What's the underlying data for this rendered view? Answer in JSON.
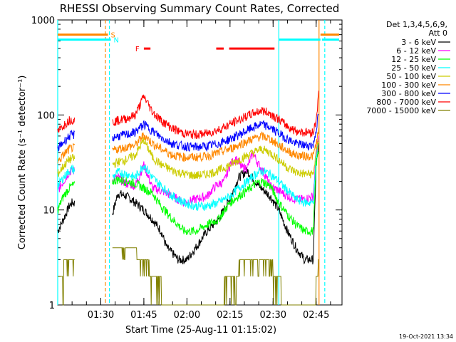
{
  "chart_data": {
    "type": "line",
    "title": "RHESSI Observing Summary Count Rates, Corrected",
    "ylabel": "Corrected Count Rate (s⁻¹ detector⁻¹)",
    "xlabel": "Start Time (25-Aug-11 01:15:02)",
    "y_scale": "log",
    "ylim": [
      1,
      1000
    ],
    "xlim_minutes": [
      0,
      99
    ],
    "y_ticks": [
      {
        "v": 1,
        "label": "1"
      },
      {
        "v": 10,
        "label": "10"
      },
      {
        "v": 100,
        "label": "100"
      },
      {
        "v": 1000,
        "label": "1000"
      }
    ],
    "x_ticks": [
      {
        "t": 15,
        "label": "01:30"
      },
      {
        "t": 30,
        "label": "01:45"
      },
      {
        "t": 45,
        "label": "02:00"
      },
      {
        "t": 60,
        "label": "02:15"
      },
      {
        "t": 75,
        "label": "02:30"
      },
      {
        "t": 90,
        "label": "02:45"
      }
    ],
    "gaps_minutes": [
      [
        6,
        19
      ],
      [
        91,
        99
      ]
    ],
    "legend": {
      "header_lines": [
        "Det 1,3,4,5,6,9,",
        "Att 0"
      ],
      "placement": "right"
    },
    "series": [
      {
        "name": "3 - 6 keV",
        "color": "#000000",
        "points": [
          [
            0,
            6
          ],
          [
            2,
            8
          ],
          [
            4,
            11
          ],
          [
            5,
            12
          ],
          [
            19,
            9
          ],
          [
            21,
            15
          ],
          [
            24,
            14
          ],
          [
            27,
            12
          ],
          [
            30,
            10
          ],
          [
            33,
            8
          ],
          [
            36,
            6
          ],
          [
            38,
            4
          ],
          [
            40,
            3.5
          ],
          [
            42,
            3
          ],
          [
            45,
            3
          ],
          [
            48,
            4
          ],
          [
            52,
            6
          ],
          [
            56,
            8
          ],
          [
            60,
            13
          ],
          [
            63,
            22
          ],
          [
            66,
            26
          ],
          [
            70,
            18
          ],
          [
            74,
            14
          ],
          [
            77,
            10
          ],
          [
            80,
            6
          ],
          [
            83,
            4
          ],
          [
            86,
            3
          ],
          [
            89,
            3
          ],
          [
            90,
            30
          ],
          [
            91,
            50
          ]
        ]
      },
      {
        "name": "6 - 12 keV",
        "color": "#ff00ff",
        "points": [
          [
            0,
            16
          ],
          [
            2,
            20
          ],
          [
            4,
            25
          ],
          [
            5,
            26
          ],
          [
            19,
            21
          ],
          [
            21,
            22
          ],
          [
            24,
            19
          ],
          [
            27,
            18
          ],
          [
            30,
            30
          ],
          [
            33,
            17
          ],
          [
            36,
            16
          ],
          [
            40,
            14
          ],
          [
            44,
            12
          ],
          [
            48,
            13
          ],
          [
            52,
            14
          ],
          [
            55,
            18
          ],
          [
            58,
            20
          ],
          [
            60,
            30
          ],
          [
            62,
            35
          ],
          [
            64,
            28
          ],
          [
            66,
            28
          ],
          [
            68,
            40
          ],
          [
            70,
            30
          ],
          [
            72,
            24
          ],
          [
            74,
            18
          ],
          [
            77,
            16
          ],
          [
            80,
            14
          ],
          [
            83,
            13
          ],
          [
            86,
            13
          ],
          [
            89,
            14
          ],
          [
            90,
            40
          ],
          [
            91,
            60
          ]
        ]
      },
      {
        "name": "12 - 25 keV",
        "color": "#00ff00",
        "points": [
          [
            0,
            10
          ],
          [
            2,
            14
          ],
          [
            4,
            17
          ],
          [
            5,
            18
          ],
          [
            19,
            20
          ],
          [
            21,
            21
          ],
          [
            24,
            20
          ],
          [
            27,
            19
          ],
          [
            30,
            17
          ],
          [
            33,
            15
          ],
          [
            36,
            11
          ],
          [
            40,
            8
          ],
          [
            44,
            6
          ],
          [
            48,
            6
          ],
          [
            52,
            7
          ],
          [
            56,
            8
          ],
          [
            60,
            12
          ],
          [
            63,
            14
          ],
          [
            66,
            16
          ],
          [
            69,
            19
          ],
          [
            71,
            20
          ],
          [
            74,
            18
          ],
          [
            77,
            12
          ],
          [
            80,
            9
          ],
          [
            83,
            7
          ],
          [
            86,
            6
          ],
          [
            89,
            6
          ],
          [
            90,
            30
          ],
          [
            91,
            45
          ]
        ]
      },
      {
        "name": "25 - 50 keV",
        "color": "#00ffff",
        "points": [
          [
            0,
            18
          ],
          [
            2,
            22
          ],
          [
            4,
            26
          ],
          [
            5,
            27
          ],
          [
            19,
            22
          ],
          [
            21,
            25
          ],
          [
            24,
            24
          ],
          [
            27,
            22
          ],
          [
            30,
            30
          ],
          [
            33,
            22
          ],
          [
            36,
            18
          ],
          [
            40,
            14
          ],
          [
            44,
            12
          ],
          [
            48,
            11
          ],
          [
            52,
            11
          ],
          [
            56,
            12
          ],
          [
            60,
            14
          ],
          [
            63,
            17
          ],
          [
            66,
            20
          ],
          [
            69,
            24
          ],
          [
            71,
            26
          ],
          [
            74,
            24
          ],
          [
            77,
            20
          ],
          [
            80,
            16
          ],
          [
            83,
            13
          ],
          [
            86,
            12
          ],
          [
            89,
            12
          ],
          [
            90,
            35
          ],
          [
            91,
            55
          ]
        ]
      },
      {
        "name": "50 - 100 keV",
        "color": "#cccc00",
        "points": [
          [
            0,
            24
          ],
          [
            2,
            29
          ],
          [
            4,
            34
          ],
          [
            5,
            35
          ],
          [
            19,
            30
          ],
          [
            21,
            32
          ],
          [
            24,
            34
          ],
          [
            27,
            38
          ],
          [
            30,
            55
          ],
          [
            33,
            36
          ],
          [
            36,
            30
          ],
          [
            40,
            26
          ],
          [
            44,
            24
          ],
          [
            48,
            23
          ],
          [
            52,
            24
          ],
          [
            56,
            26
          ],
          [
            60,
            30
          ],
          [
            64,
            35
          ],
          [
            68,
            40
          ],
          [
            71,
            44
          ],
          [
            74,
            40
          ],
          [
            77,
            34
          ],
          [
            80,
            28
          ],
          [
            83,
            25
          ],
          [
            86,
            24
          ],
          [
            89,
            24
          ],
          [
            90,
            40
          ],
          [
            91,
            60
          ]
        ]
      },
      {
        "name": "100 - 300 keV",
        "color": "#ff8800",
        "points": [
          [
            0,
            32
          ],
          [
            2,
            38
          ],
          [
            4,
            44
          ],
          [
            5,
            45
          ],
          [
            19,
            42
          ],
          [
            21,
            44
          ],
          [
            24,
            46
          ],
          [
            27,
            48
          ],
          [
            30,
            62
          ],
          [
            33,
            50
          ],
          [
            36,
            44
          ],
          [
            40,
            38
          ],
          [
            44,
            36
          ],
          [
            48,
            36
          ],
          [
            52,
            37
          ],
          [
            56,
            40
          ],
          [
            60,
            44
          ],
          [
            64,
            50
          ],
          [
            68,
            56
          ],
          [
            71,
            60
          ],
          [
            74,
            56
          ],
          [
            77,
            48
          ],
          [
            80,
            42
          ],
          [
            83,
            38
          ],
          [
            86,
            37
          ],
          [
            89,
            37
          ],
          [
            90,
            50
          ],
          [
            91,
            70
          ]
        ]
      },
      {
        "name": "300 - 800 keV",
        "color": "#0000ff",
        "points": [
          [
            0,
            44
          ],
          [
            2,
            52
          ],
          [
            4,
            60
          ],
          [
            5,
            62
          ],
          [
            19,
            58
          ],
          [
            21,
            60
          ],
          [
            24,
            62
          ],
          [
            27,
            66
          ],
          [
            30,
            80
          ],
          [
            33,
            68
          ],
          [
            36,
            58
          ],
          [
            40,
            50
          ],
          [
            44,
            47
          ],
          [
            48,
            46
          ],
          [
            52,
            47
          ],
          [
            56,
            50
          ],
          [
            60,
            56
          ],
          [
            64,
            64
          ],
          [
            68,
            74
          ],
          [
            71,
            80
          ],
          [
            74,
            74
          ],
          [
            77,
            64
          ],
          [
            80,
            56
          ],
          [
            83,
            50
          ],
          [
            86,
            48
          ],
          [
            89,
            48
          ],
          [
            90,
            70
          ],
          [
            91,
            110
          ]
        ]
      },
      {
        "name": "800 - 7000 keV",
        "color": "#ff0000",
        "points": [
          [
            0,
            66
          ],
          [
            2,
            78
          ],
          [
            4,
            88
          ],
          [
            5,
            90
          ],
          [
            19,
            84
          ],
          [
            21,
            88
          ],
          [
            24,
            92
          ],
          [
            27,
            100
          ],
          [
            30,
            158
          ],
          [
            33,
            108
          ],
          [
            36,
            88
          ],
          [
            40,
            72
          ],
          [
            44,
            64
          ],
          [
            48,
            62
          ],
          [
            52,
            64
          ],
          [
            56,
            70
          ],
          [
            60,
            80
          ],
          [
            64,
            92
          ],
          [
            68,
            104
          ],
          [
            71,
            112
          ],
          [
            74,
            104
          ],
          [
            77,
            90
          ],
          [
            80,
            76
          ],
          [
            83,
            68
          ],
          [
            86,
            66
          ],
          [
            89,
            66
          ],
          [
            90,
            90
          ],
          [
            91,
            180
          ]
        ]
      },
      {
        "name": "7000 - 15000 keV",
        "color": "#808000",
        "points": [
          [
            0,
            1.5
          ],
          [
            2,
            2.5
          ],
          [
            4,
            3
          ],
          [
            5,
            3
          ],
          [
            19,
            4
          ],
          [
            21,
            4
          ],
          [
            24,
            4
          ],
          [
            27,
            4
          ],
          [
            28,
            3
          ],
          [
            31,
            3
          ],
          [
            33,
            2
          ],
          [
            35,
            2
          ],
          [
            36,
            1.5
          ],
          [
            40,
            1
          ],
          [
            56,
            1
          ],
          [
            58,
            1.5
          ],
          [
            60,
            2
          ],
          [
            62,
            2
          ],
          [
            64,
            3
          ],
          [
            66,
            3
          ],
          [
            70,
            3
          ],
          [
            74,
            3
          ],
          [
            76,
            2
          ],
          [
            78,
            1.5
          ],
          [
            80,
            1
          ],
          [
            88,
            1
          ],
          [
            90,
            1.5
          ],
          [
            91,
            3
          ]
        ]
      }
    ],
    "attenuator_bars": [
      {
        "label": "S",
        "color": "#ff8800",
        "y": 700,
        "segments": [
          [
            0,
            17.5
          ],
          [
            91.5,
            98
          ]
        ]
      },
      {
        "label": "N",
        "color": "#00ffff",
        "y": 620,
        "segments": [
          [
            0,
            18.5
          ],
          [
            77,
            91.5
          ],
          [
            92,
            98
          ]
        ]
      },
      {
        "label": "F",
        "color": "#ff0000",
        "y": 500,
        "segments": [
          [
            30,
            32.3
          ],
          [
            55.2,
            57.8
          ],
          [
            59.7,
            75.5
          ]
        ]
      }
    ],
    "vertical_lines": [
      {
        "t": 0,
        "color": "#00ffff",
        "dash": false
      },
      {
        "t": 16.6,
        "color": "#ff8800",
        "dash": true
      },
      {
        "t": 18,
        "color": "#00ffff",
        "dash": true
      },
      {
        "t": 77,
        "color": "#00ffff",
        "dash": false
      },
      {
        "t": 91,
        "color": "#ff8800",
        "dash": false
      },
      {
        "t": 93,
        "color": "#00ffff",
        "dash": true
      }
    ]
  },
  "footer": {
    "timestamp": "19-Oct-2021 13:34"
  }
}
